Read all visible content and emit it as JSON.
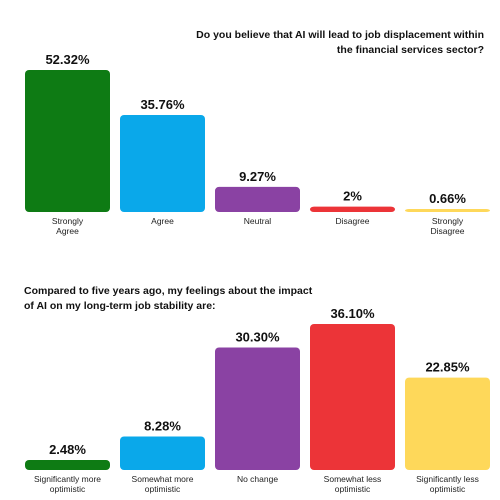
{
  "chart_data": [
    {
      "type": "bar",
      "title": "Do you believe that AI will lead to job displacement within the financial services sector?",
      "categories": [
        [
          "Strongly",
          "Agree"
        ],
        [
          "Agree"
        ],
        [
          "Neutral"
        ],
        [
          "Disagree"
        ],
        [
          "Strongly",
          "Disagree"
        ]
      ],
      "values": [
        52.32,
        35.76,
        9.27,
        2,
        0.66
      ],
      "value_labels": [
        "52.32%",
        "35.76%",
        "9.27%",
        "2%",
        "0.66%"
      ],
      "colors": [
        "#0e7b14",
        "#0aa8ea",
        "#8a42a3",
        "#ec3438",
        "#fed85a"
      ],
      "ylim": [
        0,
        52.32
      ],
      "grid": false,
      "legend": "none"
    },
    {
      "type": "bar",
      "title": "Compared to five years ago, my feelings about the impact of AI on my long-term job stability are:",
      "categories": [
        [
          "Significantly more",
          "optimistic"
        ],
        [
          "Somewhat more",
          "optimistic"
        ],
        [
          "No change"
        ],
        [
          "Somewhat less",
          "optimistic"
        ],
        [
          "Significantly less",
          "optimistic"
        ]
      ],
      "values": [
        2.48,
        8.28,
        30.3,
        36.1,
        22.85
      ],
      "value_labels": [
        "2.48%",
        "8.28%",
        "30.30%",
        "36.10%",
        "22.85%"
      ],
      "colors": [
        "#0e7b14",
        "#0aa8ea",
        "#8a42a3",
        "#ec3438",
        "#fed85a"
      ],
      "ylim": [
        0,
        36.1
      ],
      "grid": false,
      "legend": "none"
    }
  ]
}
